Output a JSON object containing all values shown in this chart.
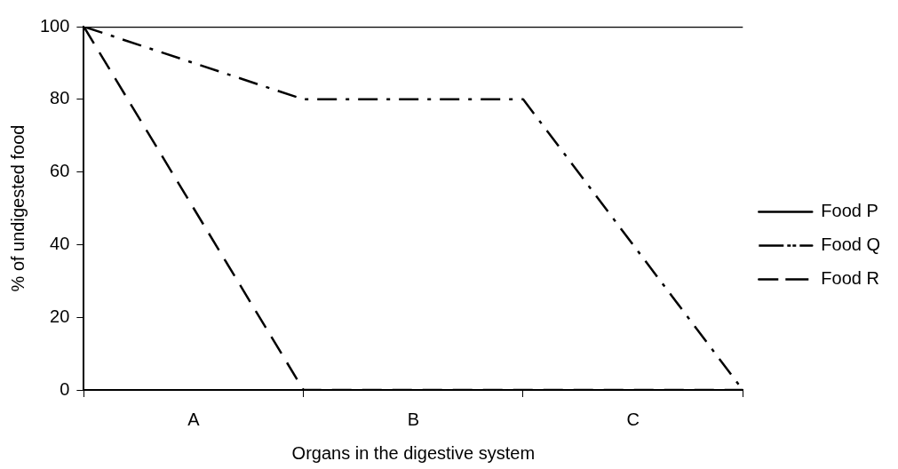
{
  "chart_data": {
    "type": "line",
    "xlabel": "Organs in the digestive system",
    "ylabel": "% of undigested food",
    "categories": [
      null,
      "A",
      null,
      "B",
      null,
      "C",
      null
    ],
    "ylim": [
      0,
      100
    ],
    "yticks": [
      0,
      20,
      40,
      60,
      80,
      100
    ],
    "grid": false,
    "legend": "right",
    "marker": "none",
    "series": [
      {
        "name": "Food P",
        "color": "#000000",
        "line_style": "solid",
        "values": [
          100,
          100,
          100,
          100,
          100,
          100,
          100
        ]
      },
      {
        "name": "Food Q",
        "color": "#000000",
        "line_style": "dashdot",
        "values": [
          100,
          90,
          80,
          80,
          80,
          40,
          0
        ]
      },
      {
        "name": "Food R",
        "color": "#000000",
        "line_style": "dashed",
        "values": [
          100,
          50,
          0,
          0,
          0,
          0,
          0
        ]
      }
    ]
  }
}
